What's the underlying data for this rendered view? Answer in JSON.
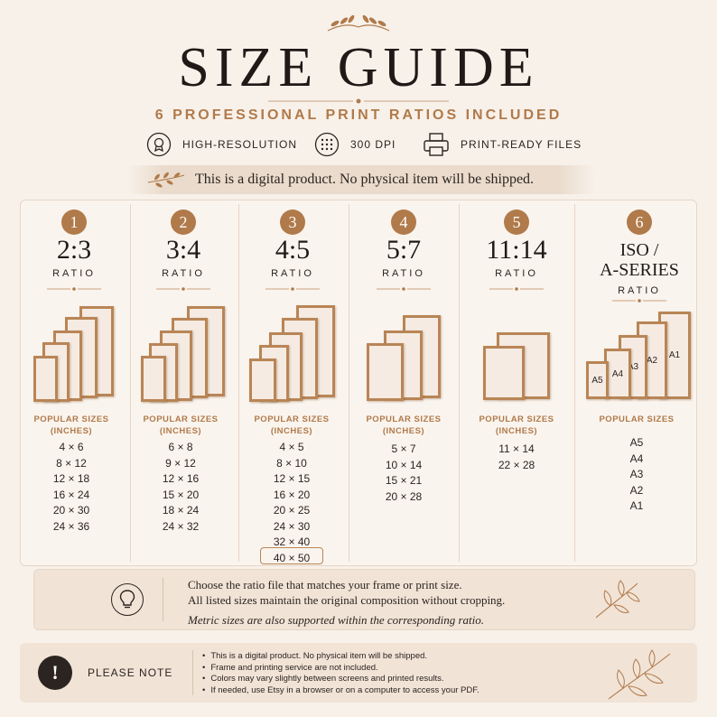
{
  "header": {
    "title": "SIZE GUIDE",
    "subtitle": "6 PROFESSIONAL PRINT RATIOS INCLUDED",
    "features": [
      {
        "icon": "award-icon",
        "label": "HIGH-RESOLUTION"
      },
      {
        "icon": "dpi-grid-icon",
        "label": "300 DPI"
      },
      {
        "icon": "printer-icon",
        "label": "PRINT-READY FILES"
      }
    ],
    "banner": "This is a digital product. No physical item will be shipped."
  },
  "ratios": [
    {
      "number": "1",
      "ratio": "2:3",
      "ratio_label": "RATIO",
      "popular_label": "POPULAR SIZES",
      "unit_label": "(INCHES)",
      "sizes": [
        "4 × 6",
        "8 × 12",
        "12 × 18",
        "16 × 24",
        "20 × 30",
        "24 × 36"
      ]
    },
    {
      "number": "2",
      "ratio": "3:4",
      "ratio_label": "RATIO",
      "popular_label": "POPULAR SIZES",
      "unit_label": "(INCHES)",
      "sizes": [
        "6 × 8",
        "9 × 12",
        "12 × 16",
        "15 × 20",
        "18 × 24",
        "24 × 32"
      ]
    },
    {
      "number": "3",
      "ratio": "4:5",
      "ratio_label": "RATIO",
      "popular_label": "POPULAR SIZES",
      "unit_label": "(INCHES)",
      "sizes": [
        "4 × 5",
        "8 × 10",
        "12 × 15",
        "16 × 20",
        "20 × 25",
        "24 × 30",
        "32 × 40",
        "40 × 50"
      ]
    },
    {
      "number": "4",
      "ratio": "5:7",
      "ratio_label": "RATIO",
      "popular_label": "POPULAR SIZES",
      "unit_label": "(INCHES)",
      "sizes": [
        "5 × 7",
        "10 × 14",
        "15 × 21",
        "20 × 28"
      ]
    },
    {
      "number": "5",
      "ratio": "11:14",
      "ratio_label": "RATIO",
      "popular_label": "POPULAR SIZES",
      "unit_label": "(INCHES)",
      "sizes": [
        "11 × 14",
        "22 × 28"
      ]
    },
    {
      "number": "6",
      "ratio_line1": "ISO /",
      "ratio_line2": "A-SERIES",
      "ratio_label": "RATIO",
      "popular_label": "POPULAR SIZES",
      "sizes": [
        "A5",
        "A4",
        "A3",
        "A2",
        "A1"
      ],
      "frame_labels": [
        "A5",
        "A4",
        "A3",
        "A2",
        "A1"
      ]
    }
  ],
  "info": {
    "line1": "Choose the ratio file that matches your frame or print size.",
    "line2": "All listed sizes maintain the original composition without cropping.",
    "line3": "Metric sizes are also supported within the corresponding ratio."
  },
  "note": {
    "icon_glyph": "!",
    "title": "PLEASE NOTE",
    "items": [
      "This is a digital product. No physical item will be shipped.",
      "Frame and printing service are not included.",
      "Colors may vary slightly between screens and printed results.",
      "If needed, use Etsy in a browser or on a computer to access your PDF."
    ]
  },
  "colors": {
    "accent": "#b07a4a",
    "frame": "#b98556",
    "background": "#f8f1ea",
    "dark": "#2b2420"
  }
}
